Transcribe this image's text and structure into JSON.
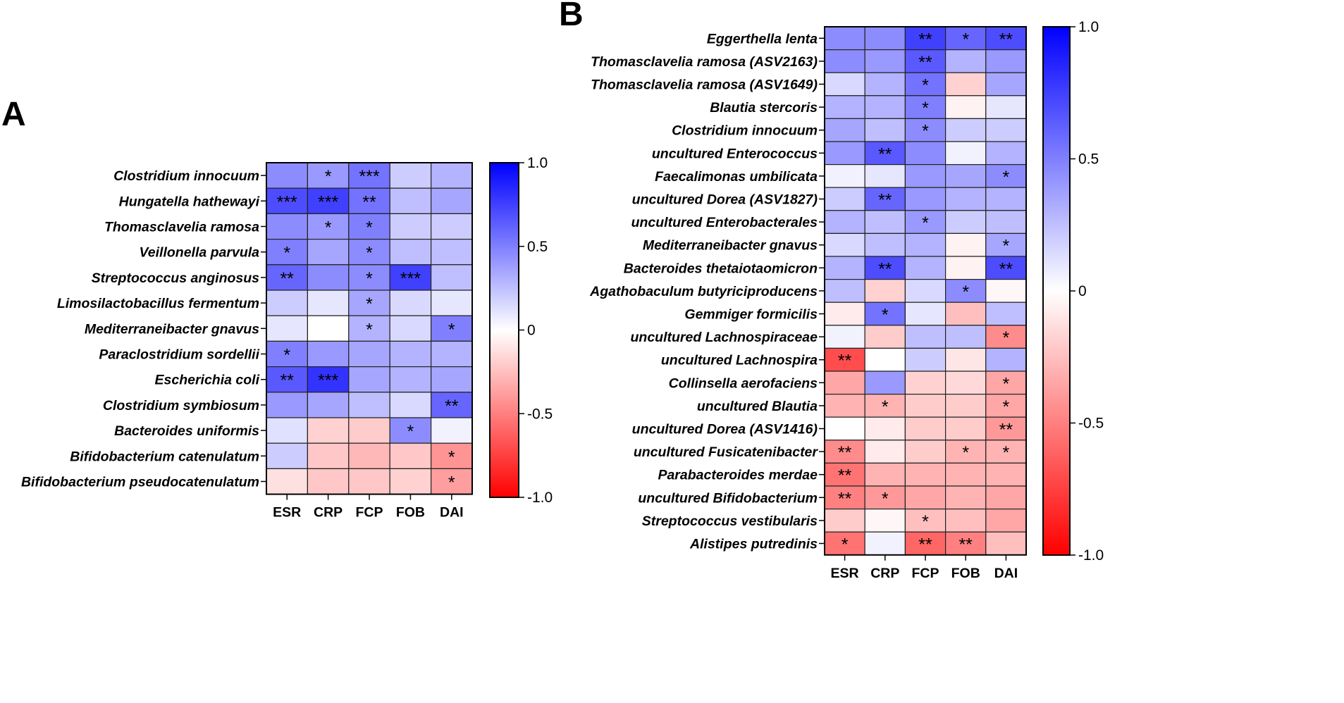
{
  "colors": {
    "negative": "#ff0000",
    "neutral": "#ffffff",
    "positive": "#0000ff",
    "grid": "#222222"
  },
  "chart_data": [
    {
      "panel": "A",
      "type": "heatmap",
      "title": "",
      "columns": [
        "ESR",
        "CRP",
        "FCP",
        "FOB",
        "DAI"
      ],
      "rows": [
        "Clostridium innocuum",
        "Hungatella hathewayi",
        "Thomasclavelia ramosa",
        "Veillonella parvula",
        "Streptococcus anginosus",
        "Limosilactobacillus fermentum",
        "Mediterraneibacter gnavus",
        "Paraclostridium sordellii",
        "Escherichia coli",
        "Clostridium symbiosum",
        "Bacteroides uniformis",
        "Bifidobacterium catenulatum",
        "Bifidobacterium pseudocatenulatum"
      ],
      "values": [
        [
          0.45,
          0.4,
          0.55,
          0.2,
          0.3
        ],
        [
          0.7,
          0.75,
          0.55,
          0.25,
          0.35
        ],
        [
          0.45,
          0.4,
          0.5,
          0.2,
          0.2
        ],
        [
          0.5,
          0.35,
          0.45,
          0.25,
          0.25
        ],
        [
          0.6,
          0.45,
          0.45,
          0.75,
          0.25
        ],
        [
          0.2,
          0.1,
          0.35,
          0.15,
          0.1
        ],
        [
          0.1,
          0.0,
          0.3,
          0.15,
          0.5
        ],
        [
          0.5,
          0.4,
          0.35,
          0.3,
          0.3
        ],
        [
          0.65,
          0.8,
          0.35,
          0.3,
          0.35
        ],
        [
          0.4,
          0.35,
          0.25,
          0.15,
          0.6
        ],
        [
          0.12,
          -0.18,
          -0.2,
          0.45,
          0.05
        ],
        [
          0.2,
          -0.22,
          -0.28,
          -0.22,
          -0.42
        ],
        [
          -0.12,
          -0.22,
          -0.22,
          -0.18,
          -0.38
        ]
      ],
      "significance": [
        [
          "",
          "*",
          "***",
          "",
          ""
        ],
        [
          "***",
          "***",
          "**",
          "",
          ""
        ],
        [
          "",
          "*",
          "*",
          "",
          ""
        ],
        [
          "*",
          "",
          "*",
          "",
          ""
        ],
        [
          "**",
          "",
          "*",
          "***",
          ""
        ],
        [
          "",
          "",
          "*",
          "",
          ""
        ],
        [
          "",
          "",
          "*",
          "",
          "*"
        ],
        [
          "*",
          "",
          "",
          "",
          ""
        ],
        [
          "**",
          "***",
          "",
          "",
          ""
        ],
        [
          "",
          "",
          "",
          "",
          "**"
        ],
        [
          "",
          "",
          "",
          "*",
          ""
        ],
        [
          "",
          "",
          "",
          "",
          "*"
        ],
        [
          "",
          "",
          "",
          "",
          "*"
        ]
      ],
      "colorbar": {
        "range": [
          -1.0,
          1.0
        ],
        "ticks": [
          1.0,
          0.5,
          0,
          -0.5,
          -1.0
        ],
        "tick_labels": [
          "1.0",
          "0.5",
          "0",
          "-0.5",
          "-1.0"
        ]
      }
    },
    {
      "panel": "B",
      "type": "heatmap",
      "title": "",
      "columns": [
        "ESR",
        "CRP",
        "FCP",
        "FOB",
        "DAI"
      ],
      "rows": [
        "Eggerthella lenta",
        "Thomasclavelia ramosa (ASV2163)",
        "Thomasclavelia ramosa (ASV1649)",
        "Blautia stercoris",
        "Clostridium innocuum",
        "uncultured Enterococcus",
        "Faecalimonas umbilicata",
        "uncultured Dorea (ASV1827)",
        "uncultured Enterobacterales",
        "Mediterraneibacter gnavus",
        "Bacteroides thetaiotaomicron",
        "Agathobaculum butyriciproducens",
        "Gemmiger formicilis",
        "uncultured Lachnospiraceae",
        "uncultured Lachnospira",
        "Collinsella aerofaciens",
        "uncultured Blautia",
        "uncultured Dorea (ASV1416)",
        "uncultured Fusicatenibacter",
        "Parabacteroides merdae",
        "uncultured Bifidobacterium",
        "Streptococcus vestibularis",
        "Alistipes putredinis"
      ],
      "values": [
        [
          0.45,
          0.45,
          0.75,
          0.6,
          0.7
        ],
        [
          0.45,
          0.4,
          0.65,
          0.3,
          0.4
        ],
        [
          0.15,
          0.3,
          0.55,
          -0.18,
          0.35
        ],
        [
          0.3,
          0.3,
          0.5,
          -0.05,
          0.1
        ],
        [
          0.35,
          0.25,
          0.45,
          0.2,
          0.2
        ],
        [
          0.4,
          0.65,
          0.45,
          0.05,
          0.3
        ],
        [
          0.05,
          0.1,
          0.4,
          0.35,
          0.45
        ],
        [
          0.2,
          0.6,
          0.4,
          0.3,
          0.3
        ],
        [
          0.3,
          0.25,
          0.4,
          0.2,
          0.25
        ],
        [
          0.15,
          0.25,
          0.3,
          -0.05,
          0.35
        ],
        [
          0.3,
          0.7,
          0.3,
          -0.05,
          0.7
        ],
        [
          0.25,
          -0.18,
          0.15,
          0.45,
          -0.03
        ],
        [
          -0.08,
          0.55,
          0.1,
          -0.25,
          0.25
        ],
        [
          0.05,
          -0.2,
          0.25,
          0.25,
          -0.45
        ],
        [
          -0.7,
          0.0,
          0.2,
          -0.1,
          0.3
        ],
        [
          -0.35,
          0.4,
          -0.18,
          -0.15,
          -0.35
        ],
        [
          -0.3,
          -0.3,
          -0.2,
          -0.2,
          -0.35
        ],
        [
          0.0,
          -0.08,
          -0.2,
          -0.2,
          -0.4
        ],
        [
          -0.45,
          -0.08,
          -0.2,
          -0.3,
          -0.3
        ],
        [
          -0.55,
          -0.3,
          -0.3,
          -0.3,
          -0.3
        ],
        [
          -0.5,
          -0.4,
          -0.35,
          -0.3,
          -0.35
        ],
        [
          -0.2,
          -0.03,
          -0.25,
          -0.25,
          -0.35
        ],
        [
          -0.55,
          0.05,
          -0.6,
          -0.5,
          -0.25
        ]
      ],
      "significance": [
        [
          "",
          "",
          "**",
          "*",
          "**"
        ],
        [
          "",
          "",
          "**",
          "",
          ""
        ],
        [
          "",
          "",
          "*",
          "",
          ""
        ],
        [
          "",
          "",
          "*",
          "",
          ""
        ],
        [
          "",
          "",
          "*",
          "",
          ""
        ],
        [
          "",
          "**",
          "",
          "",
          ""
        ],
        [
          "",
          "",
          "",
          "",
          "*"
        ],
        [
          "",
          "**",
          "",
          "",
          ""
        ],
        [
          "",
          "",
          "*",
          "",
          ""
        ],
        [
          "",
          "",
          "",
          "",
          "*"
        ],
        [
          "",
          "**",
          "",
          "",
          "**"
        ],
        [
          "",
          "",
          "",
          "*",
          ""
        ],
        [
          "",
          "*",
          "",
          "",
          ""
        ],
        [
          "",
          "",
          "",
          "",
          "*"
        ],
        [
          "**",
          "",
          "",
          "",
          ""
        ],
        [
          "",
          "",
          "",
          "",
          "*"
        ],
        [
          "",
          "*",
          "",
          "",
          "*"
        ],
        [
          "",
          "",
          "",
          "",
          "**"
        ],
        [
          "**",
          "",
          "",
          "*",
          "*"
        ],
        [
          "**",
          "",
          "",
          "",
          ""
        ],
        [
          "**",
          "*",
          "",
          "",
          ""
        ],
        [
          "",
          "",
          "*",
          "",
          ""
        ],
        [
          "*",
          "",
          "**",
          "**",
          ""
        ]
      ],
      "colorbar": {
        "range": [
          -1.0,
          1.0
        ],
        "ticks": [
          1.0,
          0.5,
          0,
          -0.5,
          -1.0
        ],
        "tick_labels": [
          "1.0",
          "0.5",
          "0",
          "-0.5",
          "-1.0"
        ]
      }
    }
  ]
}
